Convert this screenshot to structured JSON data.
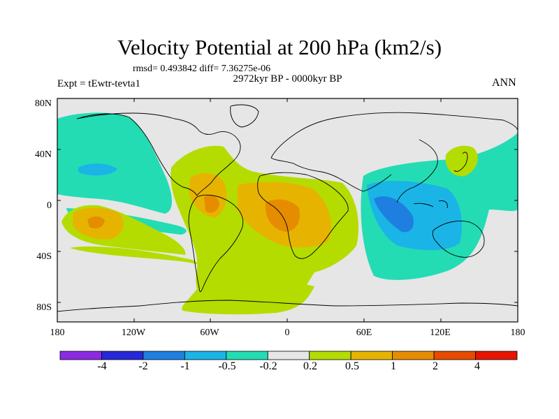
{
  "title": "Velocity Potential at 200 hPa (km2/s)",
  "stats": "rmsd= 0.493842 diff= 7.36275e-06",
  "subtitle": "2972kyr BP - 0000kyr BP",
  "left_label": "Expt = tEwtr-tevta1",
  "right_label": "ANN",
  "lat_ticks": [
    "80N",
    "40N",
    "0",
    "40S",
    "80S"
  ],
  "lon_ticks": [
    "180",
    "120W",
    "60W",
    "0",
    "60E",
    "120E",
    "180"
  ],
  "colorbar": {
    "labels": [
      "-4",
      "-2",
      "-1",
      "-0.5",
      "-0.2",
      "0.2",
      "0.5",
      "1",
      "2",
      "4"
    ],
    "colors": [
      "#8a2be2",
      "#2828d8",
      "#1e7fe0",
      "#1ab4e6",
      "#23dcb4",
      "#e6e6e6",
      "#b4dc00",
      "#e6b400",
      "#e68c00",
      "#e64b00",
      "#e61400"
    ]
  },
  "map_colors": {
    "neutral": "#e6e6e6",
    "neg_light": "#23dcb4",
    "neg_mid": "#1ab4e6",
    "neg_strong": "#1e7fe0",
    "pos_light": "#b4dc00",
    "pos_mid": "#e6b400",
    "pos_strong": "#e68c00"
  }
}
